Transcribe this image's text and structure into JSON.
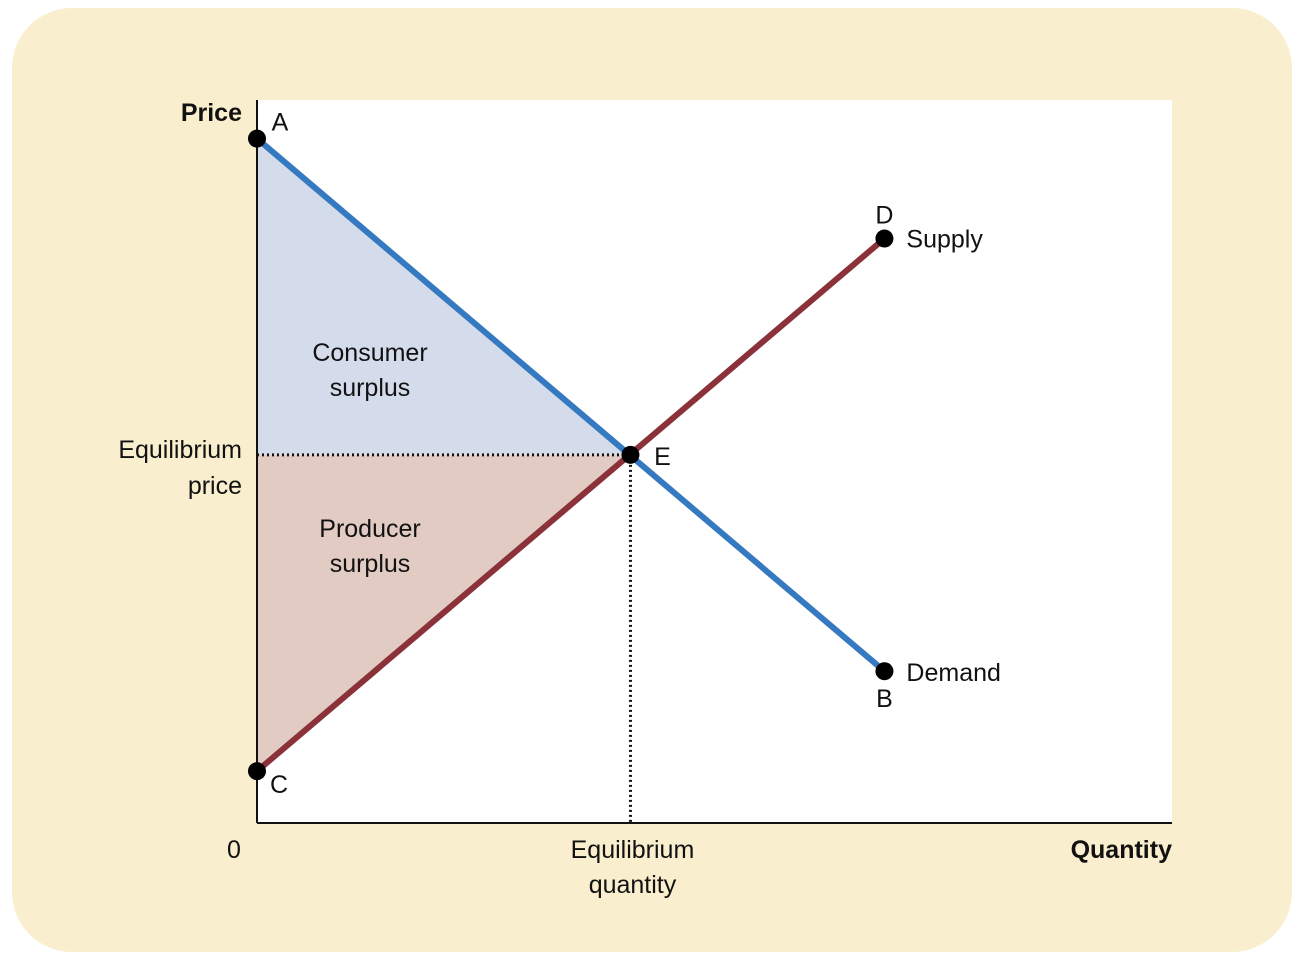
{
  "chart_data": {
    "type": "line",
    "xlabel": "Quantity",
    "ylabel": "Price",
    "origin_label": "0",
    "series": [
      {
        "name": "Demand",
        "points": [
          {
            "label": "A",
            "x": 0,
            "y": 100
          },
          {
            "label": "E",
            "x": 50,
            "y": 50
          },
          {
            "label": "B",
            "x": 84,
            "y": 15.8
          }
        ]
      },
      {
        "name": "Supply",
        "points": [
          {
            "label": "C",
            "x": 0,
            "y": 0
          },
          {
            "label": "E",
            "x": 50,
            "y": 50
          },
          {
            "label": "D",
            "x": 84,
            "y": 84.2
          }
        ]
      }
    ],
    "equilibrium": {
      "label": "E",
      "x": 50,
      "y": 50
    },
    "xlim": [
      0,
      122.5
    ],
    "ylim": [
      -8.2,
      106.1
    ],
    "areas": [
      {
        "name": "consumer-surplus",
        "label_lines": [
          "Consumer",
          "surplus"
        ],
        "color": "#d4dcec"
      },
      {
        "name": "producer-surplus",
        "label_lines": [
          "Producer",
          "surplus"
        ],
        "color": "#e1cbc3"
      }
    ],
    "equilibrium_price_label": [
      "Equilibrium",
      "price"
    ],
    "equilibrium_quantity_label": [
      "Equilibrium",
      "quantity"
    ],
    "colors": {
      "demand": "#3579c0",
      "supply": "#8b3139",
      "background": "#f9eecd",
      "plot": "#ffffff"
    }
  }
}
